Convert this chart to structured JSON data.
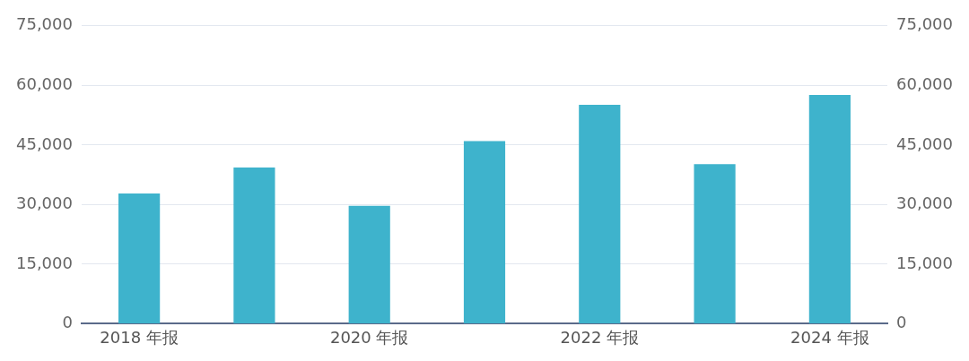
{
  "chart_data": {
    "type": "bar",
    "categories": [
      "2018 年报",
      null,
      "2020 年报",
      null,
      "2022 年报",
      null,
      "2024 年报"
    ],
    "values": [
      32800,
      39300,
      29700,
      46000,
      55100,
      40200,
      57600
    ],
    "color": "#3eb3cc",
    "ylim": [
      0,
      75000
    ],
    "yticks": [
      0,
      {
        "value": 15000,
        "label": "15,000"
      },
      {
        "value": 30000,
        "label": "30,000"
      },
      {
        "value": 45000,
        "label": "45,000"
      },
      {
        "value": 60000,
        "label": "60,000"
      },
      {
        "value": 75000,
        "label": "75,000"
      }
    ],
    "y2lim": [
      0,
      75000
    ],
    "y2ticks": [
      0,
      {
        "value": 15000,
        "label": "15,000"
      },
      {
        "value": 30000,
        "label": "30,000"
      },
      {
        "value": 45000,
        "label": "45,000"
      },
      {
        "value": 60000,
        "label": "60,000"
      },
      {
        "value": 75000,
        "label": "75,000"
      }
    ],
    "grid": "y",
    "legend": false
  }
}
